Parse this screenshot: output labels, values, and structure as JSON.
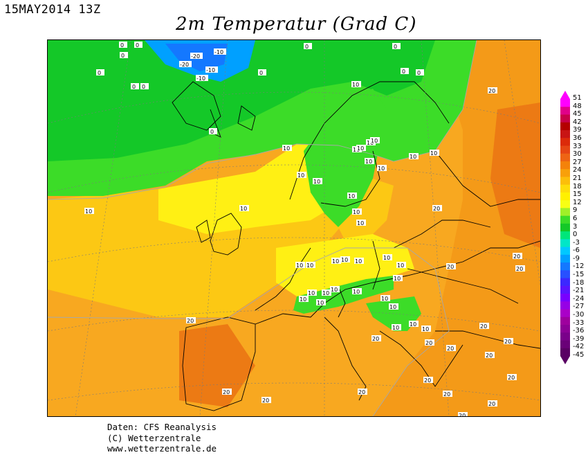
{
  "header": {
    "date": "15MAY2014 13Z",
    "title": "2m Temperatur (Grad C)"
  },
  "credits": {
    "line1": "Daten: CFS Reanalysis",
    "line2": "(C) Wetterzentrale",
    "line3": "www.wetterzentrale.de"
  },
  "legend": {
    "ticks": [
      "51",
      "48",
      "45",
      "42",
      "39",
      "36",
      "33",
      "30",
      "27",
      "24",
      "21",
      "18",
      "15",
      "12",
      "9",
      "6",
      "3",
      "0",
      "-3",
      "-6",
      "-9",
      "-12",
      "-15",
      "-18",
      "-21",
      "-24",
      "-27",
      "-30",
      "-33",
      "-36",
      "-39",
      "-42",
      "-45"
    ],
    "colors": [
      "#ff00ff",
      "#e0008a",
      "#c8004a",
      "#b40000",
      "#c81414",
      "#dc2a0a",
      "#e64614",
      "#ee6414",
      "#f4820a",
      "#f8a00a",
      "#fcbe0a",
      "#fedc0a",
      "#fff000",
      "#f8ff14",
      "#a0f028",
      "#3cdc28",
      "#14c828",
      "#00e67a",
      "#00e6c8",
      "#00c8ff",
      "#00a0ff",
      "#1478ff",
      "#2850ff",
      "#3c28ff",
      "#5a14ff",
      "#7800ff",
      "#9600e6",
      "#aa00c8",
      "#9e009e",
      "#8c0096",
      "#7a008a",
      "#6a0078",
      "#5a0064"
    ]
  },
  "map_labels": {
    "arctic": [
      "0",
      "0",
      "0",
      "-20",
      "-10",
      "-20",
      "-10",
      "-10",
      "0",
      "0",
      "0",
      "0",
      "0",
      "0",
      "0",
      "0",
      "0"
    ],
    "ten": [
      "10",
      "10",
      "10",
      "10",
      "10",
      "10",
      "10",
      "10",
      "10",
      "10",
      "10",
      "10",
      "10",
      "10",
      "10",
      "10",
      "10",
      "10",
      "10",
      "10",
      "10",
      "10",
      "10",
      "10",
      "10",
      "10",
      "10",
      "10",
      "10",
      "10",
      "10",
      "10",
      "10",
      "10",
      "10",
      "10"
    ],
    "twenty": [
      "20",
      "20",
      "20",
      "20",
      "20",
      "20",
      "20",
      "20",
      "20",
      "20",
      "20",
      "20",
      "20",
      "20",
      "20",
      "20",
      "20",
      "20",
      "20",
      "20"
    ]
  }
}
